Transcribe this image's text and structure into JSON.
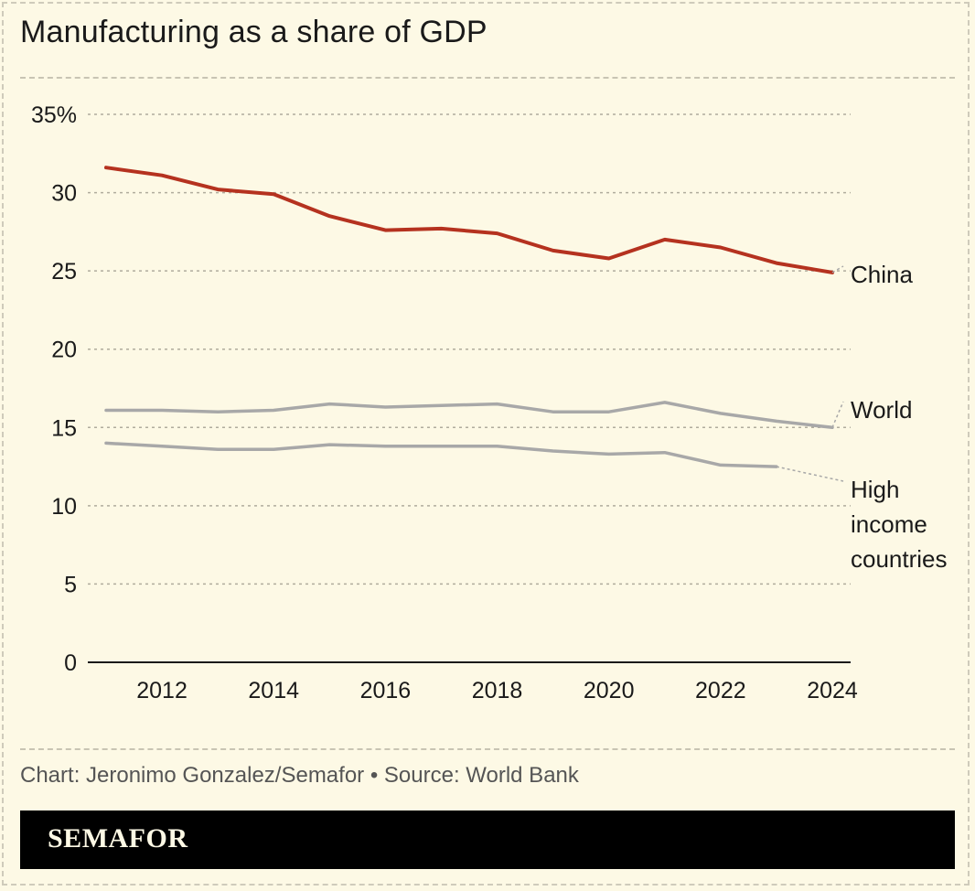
{
  "title": "Manufacturing as a share of GDP",
  "footer": "Chart: Jeronimo Gonzalez/Semafor • Source: World Bank",
  "brand": "SEMAFOR",
  "colors": {
    "background": "#fdf9e5",
    "china": "#b5321f",
    "gray": "#a8a8a8",
    "grid": "#b0ac9d"
  },
  "chart_data": {
    "type": "line",
    "title": "Manufacturing as a share of GDP",
    "xlabel": "",
    "ylabel": "",
    "xlim": [
      2011,
      2024
    ],
    "ylim": [
      0,
      35
    ],
    "y_ticks": [
      0,
      5,
      10,
      15,
      20,
      25,
      30,
      35
    ],
    "y_tick_labels": [
      "0",
      "5",
      "10",
      "15",
      "20",
      "25",
      "30",
      "35%"
    ],
    "x_ticks": [
      2012,
      2014,
      2016,
      2018,
      2020,
      2022,
      2024
    ],
    "x_tick_labels": [
      "2012",
      "2014",
      "2016",
      "2018",
      "2020",
      "2022",
      "2024"
    ],
    "grid": true,
    "series": [
      {
        "name": "China",
        "label_lines": [
          "China"
        ],
        "color": "#b5321f",
        "x": [
          2011,
          2012,
          2013,
          2014,
          2015,
          2016,
          2017,
          2018,
          2019,
          2020,
          2021,
          2022,
          2023,
          2024
        ],
        "values": [
          31.6,
          31.1,
          30.2,
          29.9,
          28.5,
          27.6,
          27.7,
          27.4,
          26.3,
          25.8,
          27.0,
          26.5,
          25.5,
          24.9
        ]
      },
      {
        "name": "World",
        "label_lines": [
          "World"
        ],
        "color": "#a8a8a8",
        "x": [
          2011,
          2012,
          2013,
          2014,
          2015,
          2016,
          2017,
          2018,
          2019,
          2020,
          2021,
          2022,
          2023,
          2024
        ],
        "values": [
          16.1,
          16.1,
          16.0,
          16.1,
          16.5,
          16.3,
          16.4,
          16.5,
          16.0,
          16.0,
          16.6,
          15.9,
          15.4,
          15.0
        ]
      },
      {
        "name": "High income countries",
        "label_lines": [
          "High",
          "income",
          "countries"
        ],
        "color": "#a8a8a8",
        "x": [
          2011,
          2012,
          2013,
          2014,
          2015,
          2016,
          2017,
          2018,
          2019,
          2020,
          2021,
          2022,
          2023
        ],
        "values": [
          14.0,
          13.8,
          13.6,
          13.6,
          13.9,
          13.8,
          13.8,
          13.8,
          13.5,
          13.3,
          13.4,
          12.6,
          12.5
        ]
      }
    ]
  }
}
